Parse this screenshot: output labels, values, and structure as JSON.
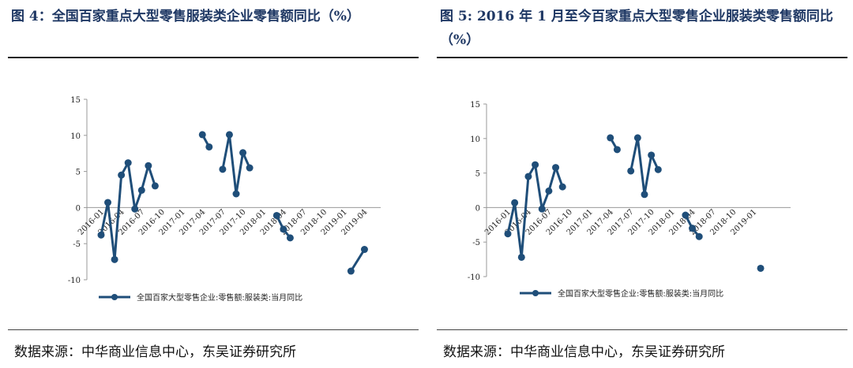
{
  "colors": {
    "series": "#1f4e79",
    "title": "#1f3864"
  },
  "panels": [
    {
      "title": "图 4：全国百家重点大型零售服装类企业零售额同比（%）",
      "source": "数据来源：中华商业信息中心，东吴证券研究所"
    },
    {
      "title": "图 5: 2016 年 1 月至今百家重点大型零售企业服装类零售额同比（%）",
      "source": "数据来源：中华商业信息中心，东吴证券研究所"
    }
  ],
  "chart_data": [
    {
      "type": "line",
      "title": "",
      "ylim": [
        -10,
        15
      ],
      "yticks": [
        15,
        10,
        5,
        0,
        -5,
        -10
      ],
      "x_start": "2016-01",
      "n_months": 41,
      "xtick_labels": [
        "2016-01",
        "2016-04",
        "2016-07",
        "2016-10",
        "2017-01",
        "2017-04",
        "2017-07",
        "2017-10",
        "2018-01",
        "2018-04",
        "2018-07",
        "2018-10",
        "2019-01",
        "2019-04"
      ],
      "grid": false,
      "legend_position": "bottom-center",
      "series": [
        {
          "name": "全国百家大型零售企业:零售额:服装类:当月同比",
          "points": [
            [
              "2016-01",
              -3.8
            ],
            [
              "2016-02",
              0.7
            ],
            [
              "2016-03",
              -7.2
            ],
            [
              "2016-04",
              4.5
            ],
            [
              "2016-05",
              6.2
            ],
            [
              "2016-06",
              -0.2
            ],
            [
              "2016-07",
              2.4
            ],
            [
              "2016-08",
              5.8
            ],
            [
              "2016-09",
              3.0
            ],
            [
              "2017-04",
              10.1
            ],
            [
              "2017-05",
              8.4
            ],
            [
              "2017-07",
              5.3
            ],
            [
              "2017-08",
              10.1
            ],
            [
              "2017-09",
              1.9
            ],
            [
              "2017-10",
              7.6
            ],
            [
              "2017-11",
              5.5
            ],
            [
              "2018-03",
              -1.1
            ],
            [
              "2018-04",
              -3.0
            ],
            [
              "2018-05",
              -4.2
            ],
            [
              "2019-02",
              -8.8
            ],
            [
              "2019-04",
              -5.8
            ]
          ]
        }
      ]
    },
    {
      "type": "line",
      "title": "",
      "ylim": [
        -10,
        15
      ],
      "yticks": [
        15,
        10,
        5,
        0,
        -5,
        -10
      ],
      "x_start": "2016-01",
      "n_months": 41,
      "xtick_labels": [
        "2016-01",
        "2016-04",
        "2016-07",
        "2016-10",
        "2017-01",
        "2017-04",
        "2017-07",
        "2017-10",
        "2018-01",
        "2018-04",
        "2018-07",
        "2018-10",
        "2019-01"
      ],
      "grid": false,
      "legend_position": "bottom-center",
      "series": [
        {
          "name": "全国百家大型零售企业:零售额:服装类:当月同比",
          "points": [
            [
              "2016-01",
              -3.8
            ],
            [
              "2016-02",
              0.7
            ],
            [
              "2016-03",
              -7.2
            ],
            [
              "2016-04",
              4.5
            ],
            [
              "2016-05",
              6.2
            ],
            [
              "2016-06",
              -0.2
            ],
            [
              "2016-07",
              2.4
            ],
            [
              "2016-08",
              5.8
            ],
            [
              "2016-09",
              3.0
            ],
            [
              "2017-04",
              10.1
            ],
            [
              "2017-05",
              8.4
            ],
            [
              "2017-07",
              5.3
            ],
            [
              "2017-08",
              10.1
            ],
            [
              "2017-09",
              1.9
            ],
            [
              "2017-10",
              7.6
            ],
            [
              "2017-11",
              5.5
            ],
            [
              "2018-03",
              -1.1
            ],
            [
              "2018-04",
              -3.0
            ],
            [
              "2018-05",
              -4.2
            ],
            [
              "2019-02",
              -8.8
            ]
          ]
        }
      ]
    }
  ]
}
